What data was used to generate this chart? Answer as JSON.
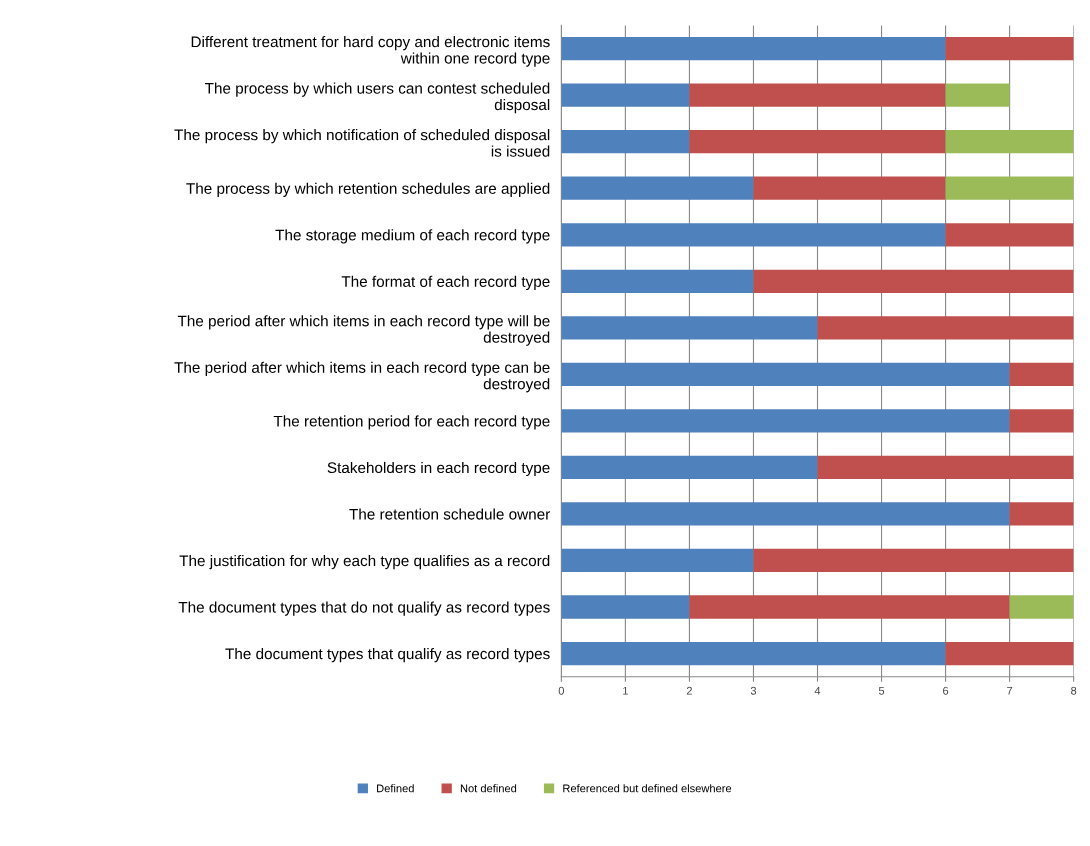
{
  "chart_data": {
    "type": "bar",
    "orientation": "horizontal",
    "stacked": true,
    "categories": [
      "Different treatment for hard copy and electronic items\nwithin one record type",
      "The process by which users can contest scheduled\ndisposal",
      "The process by which notification of scheduled disposal\nis issued",
      "The process by which retention schedules are applied",
      "The storage medium of each record type",
      "The format of each record type",
      "The period after which items in each record type will be\ndestroyed",
      "The period after which items in each record type can be\ndestroyed",
      "The retention period for each record type",
      "Stakeholders in each record type",
      "The retention schedule owner",
      "The justification for why each type qualifies as a record",
      "The document types that do not qualify as record types",
      "The document types that qualify as record types"
    ],
    "series": [
      {
        "name": "Defined",
        "color": "#4f81bd",
        "values": [
          6,
          2,
          2,
          3,
          6,
          3,
          4,
          7,
          7,
          4,
          7,
          3,
          2,
          6
        ]
      },
      {
        "name": "Not defined",
        "color": "#c0504d",
        "values": [
          2,
          4,
          4,
          3,
          2,
          5,
          4,
          1,
          1,
          4,
          1,
          5,
          5,
          2
        ]
      },
      {
        "name": "Referenced but defined elsewhere",
        "color": "#9bbb59",
        "values": [
          null,
          1,
          2,
          2,
          null,
          null,
          null,
          null,
          null,
          null,
          null,
          null,
          1,
          null
        ]
      }
    ],
    "xlim": [
      0,
      8
    ],
    "xticks": [
      0,
      1,
      2,
      3,
      4,
      5,
      6,
      7,
      8
    ],
    "grid": "x",
    "legend": "bottom"
  }
}
